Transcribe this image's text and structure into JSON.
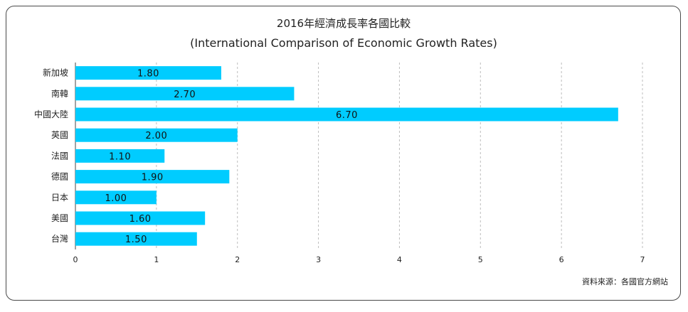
{
  "chart_data": {
    "type": "bar",
    "orientation": "horizontal",
    "title": "2016年經濟成長率各國比較",
    "subtitle": "(International Comparison of Economic Growth Rates)",
    "categories": [
      "新加坡",
      "南韓",
      "中國大陸",
      "英國",
      "法國",
      "德國",
      "日本",
      "美國",
      "台灣"
    ],
    "values": [
      1.8,
      2.7,
      6.7,
      2.0,
      1.1,
      1.9,
      1.0,
      1.6,
      1.5
    ],
    "value_labels": [
      "1.80",
      "2.70",
      "6.70",
      "2.00",
      "1.10",
      "1.90",
      "1.00",
      "1.60",
      "1.50"
    ],
    "xlim": [
      0,
      7
    ],
    "xticks": [
      "0",
      "1",
      "2",
      "3",
      "4",
      "5",
      "6",
      "7"
    ],
    "grid": "vertical-dashed",
    "bar_color": "#00ccff",
    "source": "資料來源：各國官方網站"
  }
}
